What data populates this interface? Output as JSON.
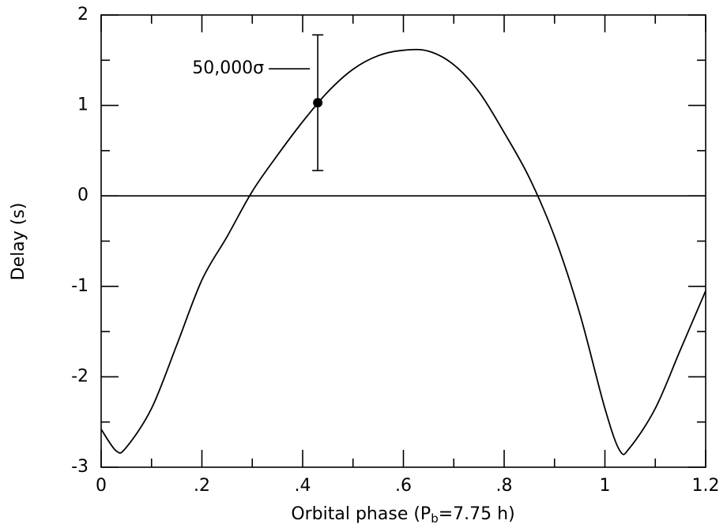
{
  "chart_data": {
    "type": "line",
    "x_label": [
      "Orbital phase (P",
      "b",
      "=7.75 h)"
    ],
    "y_label": "Delay (s)",
    "x": [
      0,
      0.03,
      0.05,
      0.1,
      0.15,
      0.2,
      0.25,
      0.3,
      0.35,
      0.4,
      0.45,
      0.5,
      0.55,
      0.6,
      0.65,
      0.7,
      0.75,
      0.8,
      0.85,
      0.9,
      0.95,
      1.0,
      1.03,
      1.05,
      1.1,
      1.15,
      1.2
    ],
    "series": [
      {
        "color": "#000000",
        "values": [
          -2.58,
          -2.82,
          -2.78,
          -2.35,
          -1.65,
          -0.93,
          -0.45,
          0.05,
          0.45,
          0.82,
          1.15,
          1.4,
          1.55,
          1.61,
          1.6,
          1.45,
          1.15,
          0.7,
          0.2,
          -0.45,
          -1.3,
          -2.35,
          -2.82,
          -2.78,
          -2.35,
          -1.7,
          -1.05
        ]
      }
    ],
    "points": [
      {
        "x": 0.43,
        "y": 1.03,
        "error": 0.75
      }
    ],
    "annotation": "50,000σ",
    "hline": 0,
    "xlim": [
      0,
      1.2
    ],
    "ylim": [
      -3,
      2
    ],
    "xticks": [
      0,
      {
        "value": 0.2,
        "label": ".2"
      },
      {
        "value": 0.4,
        "label": ".4"
      },
      {
        "value": 0.6,
        "label": ".6"
      },
      {
        "value": 0.8,
        "label": ".8"
      },
      1,
      1.2
    ],
    "yticks": [
      -3,
      -2,
      -1,
      0,
      1,
      2
    ]
  }
}
